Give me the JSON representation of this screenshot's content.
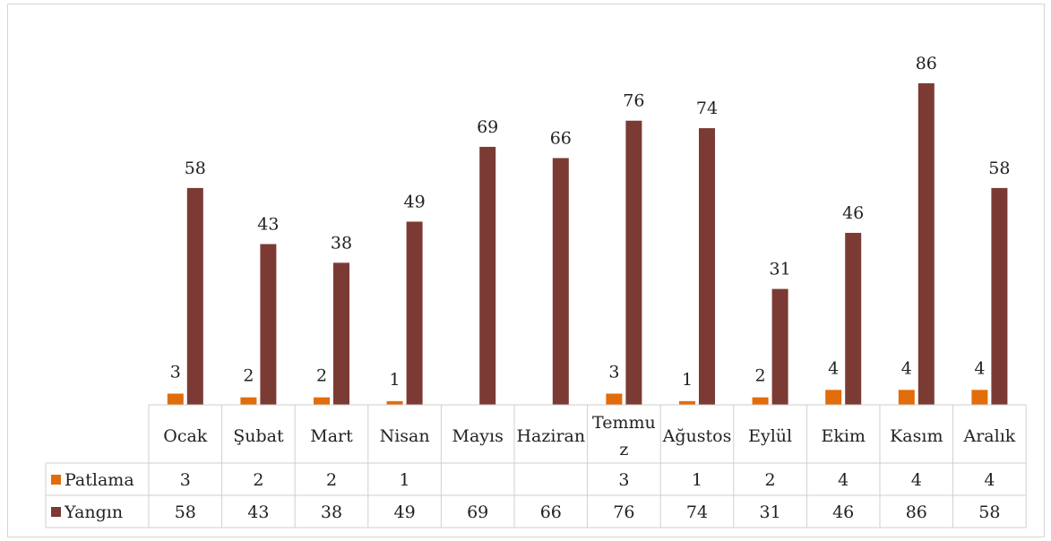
{
  "chart_data": {
    "type": "bar",
    "categories": [
      "Ocak",
      "Şubat",
      "Mart",
      "Nisan",
      "Mayıs",
      "Haziran",
      "Temmuz",
      "Ağustos",
      "Eylül",
      "Ekim",
      "Kasım",
      "Aralık"
    ],
    "category_labels_display": [
      [
        "Ocak"
      ],
      [
        "Şubat"
      ],
      [
        "Mart"
      ],
      [
        "Nisan"
      ],
      [
        "Mayıs"
      ],
      [
        "Haziran"
      ],
      [
        "Temmu",
        "z"
      ],
      [
        "Ağustos"
      ],
      [
        "Eylül"
      ],
      [
        "Ekim"
      ],
      [
        "Kasım"
      ],
      [
        "Aralık"
      ]
    ],
    "series": [
      {
        "name": "Patlama",
        "color": "#e36c0a",
        "values": [
          3,
          2,
          2,
          1,
          null,
          null,
          3,
          1,
          2,
          4,
          4,
          4
        ]
      },
      {
        "name": "Yangın",
        "color": "#7b3b34",
        "values": [
          58,
          43,
          38,
          49,
          69,
          66,
          76,
          74,
          31,
          46,
          86,
          58
        ]
      }
    ],
    "ylim": [
      0,
      86
    ],
    "data_labels": true,
    "data_table": true,
    "legend": "data-table"
  }
}
